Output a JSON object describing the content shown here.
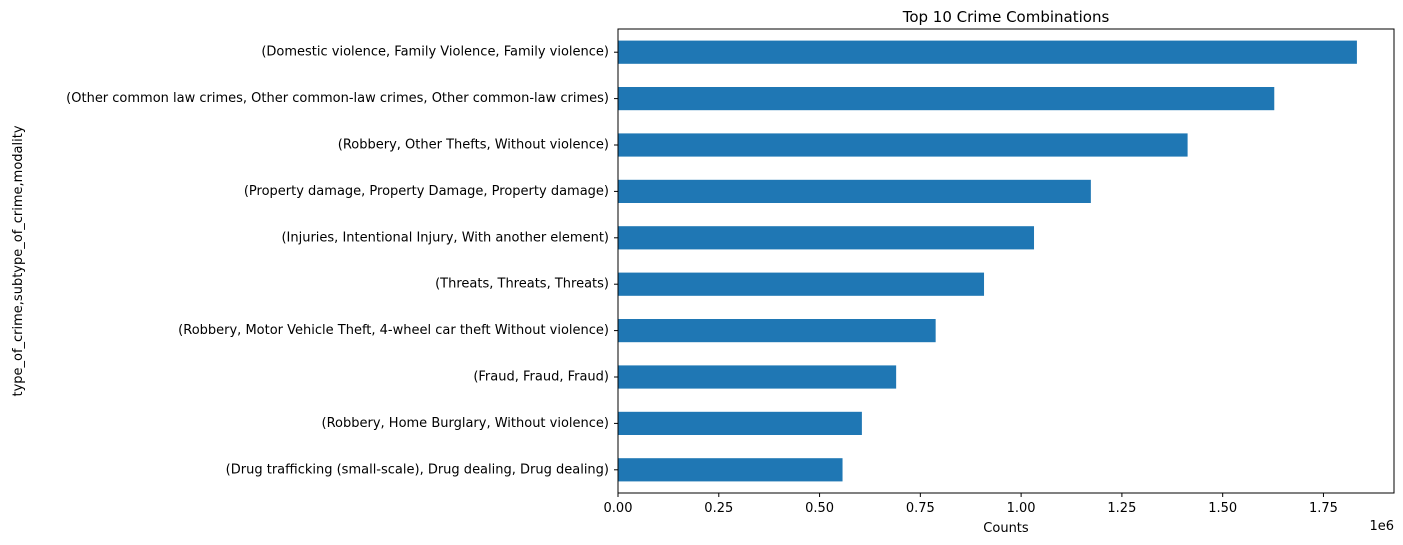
{
  "chart_data": {
    "type": "bar",
    "orientation": "horizontal",
    "title": "Top 10 Crime Combinations",
    "xlabel": "Counts",
    "ylabel": "type_of_crime,subtype_of_crime,modality",
    "x_offset_label": "1e6",
    "xlim": [
      0,
      1925000
    ],
    "x_ticks": [
      0,
      250000,
      500000,
      750000,
      1000000,
      1250000,
      1500000,
      1750000
    ],
    "x_tick_labels": [
      "0.00",
      "0.25",
      "0.50",
      "0.75",
      "1.00",
      "1.25",
      "1.50",
      "1.75"
    ],
    "grid": false,
    "bar_color": "#1f77b4",
    "categories": [
      "(Domestic violence, Family Violence, Family violence)",
      "(Other common law crimes, Other common-law crimes, Other common-law crimes)",
      "(Robbery, Other Thefts, Without violence)",
      "(Property damage, Property Damage, Property damage)",
      "(Injuries, Intentional Injury, With another element)",
      "(Threats, Threats, Threats)",
      "(Robbery, Motor Vehicle Theft, 4-wheel car theft Without violence)",
      "(Fraud, Fraud, Fraud)",
      "(Robbery, Home Burglary, Without violence)",
      "(Drug trafficking (small-scale), Drug dealing, Drug dealing)"
    ],
    "values": [
      1833000,
      1628000,
      1413000,
      1173000,
      1032000,
      908000,
      788000,
      690000,
      605000,
      557000
    ]
  }
}
